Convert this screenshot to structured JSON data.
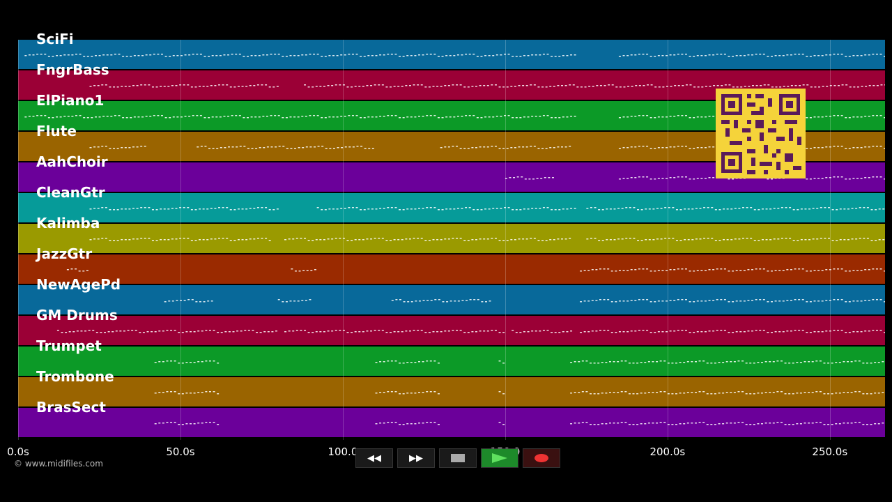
{
  "tracks": [
    {
      "name": "SciFi",
      "color": "#08699a"
    },
    {
      "name": "FngrBass",
      "color": "#9b0036"
    },
    {
      "name": "ElPiano1",
      "color": "#0c9a27"
    },
    {
      "name": "Flute",
      "color": "#9a6400"
    },
    {
      "name": "AahChoir",
      "color": "#6b009a"
    },
    {
      "name": "CleanGtr",
      "color": "#069b99"
    },
    {
      "name": "Kalimba",
      "color": "#9a9a00"
    },
    {
      "name": "JazzGtr",
      "color": "#9a2a00"
    },
    {
      "name": "NewAgePd",
      "color": "#08699a"
    },
    {
      "name": "GM Drums",
      "color": "#9b0036"
    },
    {
      "name": "Trumpet",
      "color": "#0c9a27"
    },
    {
      "name": "Trombone",
      "color": "#9a6400"
    },
    {
      "name": "BrasSect",
      "color": "#6b009a"
    }
  ],
  "time_axis": {
    "ticks": [
      "0.0s",
      "50.0s",
      "100.0",
      "150.0",
      "200.0s",
      "250.0s"
    ],
    "tick_values": [
      0,
      50,
      100,
      150,
      200,
      250
    ],
    "max_seconds": 267
  },
  "copyright": "© www.midifiles.com",
  "transport": {
    "rewind": "rewind-icon",
    "fast_forward": "fast-forward-icon",
    "stop": "stop-icon",
    "play": "play-icon",
    "record": "record-icon"
  },
  "qr_code": "qr-code"
}
